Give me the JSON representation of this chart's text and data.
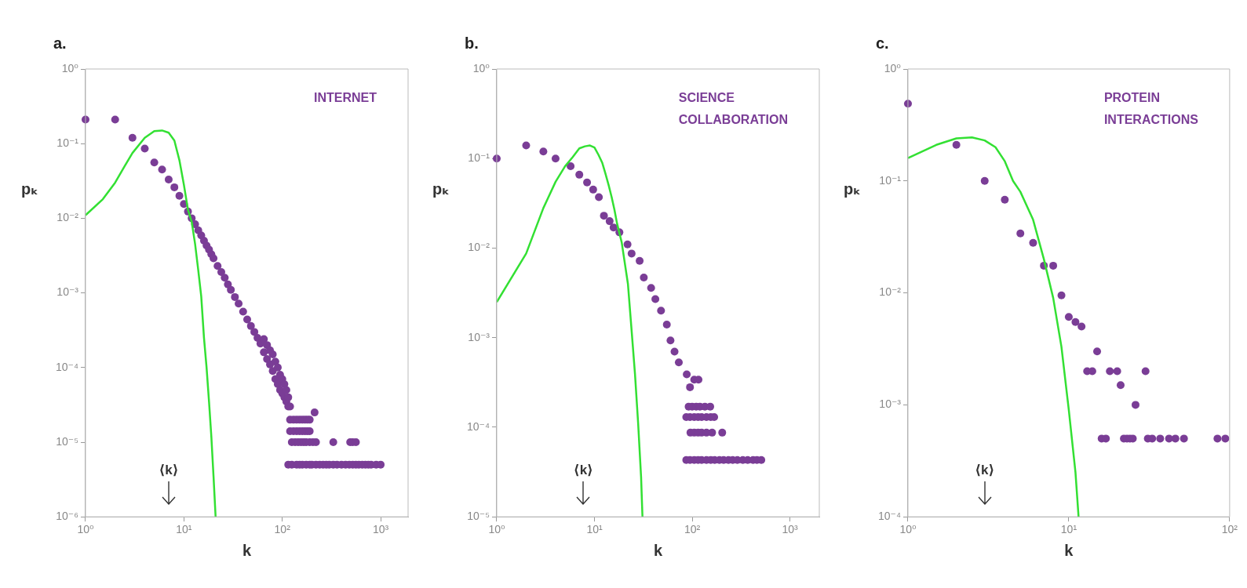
{
  "chart_data": [
    {
      "type": "scatter",
      "title": "a.",
      "xlabel": "k",
      "ylabel": "pₖ",
      "log": "xy",
      "xlim": [
        1,
        1900
      ],
      "ylim": [
        1e-06,
        1
      ],
      "xticks": [
        {
          "value": 1,
          "label": "10⁰"
        },
        {
          "value": 10,
          "label": "10¹"
        },
        {
          "value": 100,
          "label": "10²"
        },
        {
          "value": 1000,
          "label": "10³"
        }
      ],
      "yticks": [
        {
          "value": 1e-06,
          "label": "10⁻⁶"
        },
        {
          "value": 1e-05,
          "label": "10⁻⁵"
        },
        {
          "value": 0.0001,
          "label": "10⁻⁴"
        },
        {
          "value": 0.001,
          "label": "10⁻³"
        },
        {
          "value": 0.01,
          "label": "10⁻²"
        },
        {
          "value": 0.1,
          "label": "10⁻¹"
        },
        {
          "value": 1,
          "label": "10⁰"
        }
      ],
      "annotations": [
        "INTERNET"
      ],
      "ref_lines": [
        {
          "axis": "x",
          "value": 7,
          "label": "⟨k⟩"
        }
      ],
      "series": [
        {
          "marker": "circle",
          "color": "#7a3d96",
          "x": [
            1,
            2,
            3,
            4,
            5,
            6,
            7,
            8,
            9,
            10,
            11,
            12,
            13,
            14,
            15,
            16,
            17,
            18,
            19,
            20,
            22,
            24,
            26,
            28,
            30,
            33,
            36,
            40,
            44,
            48,
            52,
            56,
            60,
            65,
            65,
            70,
            70,
            75,
            75,
            80,
            80,
            85,
            85,
            90,
            90,
            95,
            95,
            100,
            100,
            105,
            105,
            110,
            110,
            115,
            115,
            120,
            120,
            130,
            140,
            150,
            160,
            170,
            180,
            190,
            120,
            130,
            140,
            150,
            160,
            170,
            180,
            190,
            125,
            135,
            145,
            155,
            165,
            175,
            190,
            205,
            220,
            330,
            490,
            520,
            560,
            115,
            125,
            140,
            150,
            160,
            175,
            190,
            200,
            220,
            240,
            260,
            280,
            300,
            330,
            360,
            400,
            440,
            480,
            520,
            560,
            600,
            650,
            700,
            750,
            800,
            900,
            1000,
            213
          ],
          "values": [
            0.21,
            0.21,
            0.12,
            0.086,
            0.056,
            0.045,
            0.033,
            0.026,
            0.02,
            0.0155,
            0.0123,
            0.01,
            0.0083,
            0.0069,
            0.0059,
            0.005,
            0.0043,
            0.0038,
            0.0033,
            0.0029,
            0.0023,
            0.0019,
            0.0016,
            0.0013,
            0.0011,
            0.00088,
            0.00072,
            0.00056,
            0.00044,
            0.00036,
            0.0003,
            0.00025,
            0.00021,
            0.00024,
            0.00016,
            0.0002,
            0.00013,
            0.00017,
            0.00011,
            0.00015,
            9e-05,
            0.00012,
            7e-05,
            0.0001,
            6e-05,
            8e-05,
            5e-05,
            7e-05,
            4.5e-05,
            6e-05,
            4e-05,
            5e-05,
            3.5e-05,
            4e-05,
            3e-05,
            3e-05,
            2e-05,
            2e-05,
            2e-05,
            2e-05,
            2e-05,
            2e-05,
            2e-05,
            2e-05,
            1.4e-05,
            1.4e-05,
            1.4e-05,
            1.4e-05,
            1.4e-05,
            1.4e-05,
            1.4e-05,
            1.4e-05,
            1e-05,
            1e-05,
            1e-05,
            1e-05,
            1e-05,
            1e-05,
            1e-05,
            1e-05,
            1e-05,
            1e-05,
            1e-05,
            1e-05,
            1e-05,
            5e-06,
            5e-06,
            5e-06,
            5e-06,
            5e-06,
            5e-06,
            5e-06,
            5e-06,
            5e-06,
            5e-06,
            5e-06,
            5e-06,
            5e-06,
            5e-06,
            5e-06,
            5e-06,
            5e-06,
            5e-06,
            5e-06,
            5e-06,
            5e-06,
            5e-06,
            5e-06,
            5e-06,
            5e-06,
            5e-06,
            5e-06,
            2.5e-05
          ]
        },
        {
          "type": "line",
          "marker": "none",
          "color": "#33e033",
          "x": [
            1,
            1.5,
            2,
            2.5,
            3,
            4,
            5,
            6,
            7,
            8,
            9,
            10,
            11,
            12,
            13,
            14,
            15,
            16,
            17,
            18,
            19,
            20,
            21
          ],
          "values": [
            0.011,
            0.018,
            0.03,
            0.05,
            0.075,
            0.12,
            0.147,
            0.15,
            0.14,
            0.11,
            0.06,
            0.028,
            0.013,
            0.009,
            0.0045,
            0.002,
            0.0009,
            0.00025,
            0.0001,
            3.5e-05,
            1.2e-05,
            3.5e-06,
            1e-06
          ]
        }
      ]
    },
    {
      "type": "scatter",
      "title": "b.",
      "xlabel": "k",
      "ylabel": "pₖ",
      "log": "xy",
      "xlim": [
        1,
        2000
      ],
      "ylim": [
        1e-05,
        1
      ],
      "xticks": [
        {
          "value": 1,
          "label": "10⁰"
        },
        {
          "value": 10,
          "label": "10¹"
        },
        {
          "value": 100,
          "label": "10²"
        },
        {
          "value": 1000,
          "label": "10³"
        }
      ],
      "yticks": [
        {
          "value": 1e-05,
          "label": "10⁻⁵"
        },
        {
          "value": 0.0001,
          "label": "10⁻⁴"
        },
        {
          "value": 0.001,
          "label": "10⁻³"
        },
        {
          "value": 0.01,
          "label": "10⁻²"
        },
        {
          "value": 0.1,
          "label": "10⁻¹"
        },
        {
          "value": 1,
          "label": "10⁰"
        }
      ],
      "annotations": [
        "SCIENCE COLLABORATION"
      ],
      "ref_lines": [
        {
          "axis": "x",
          "value": 7.7,
          "label": "⟨k⟩"
        }
      ],
      "series": [
        {
          "marker": "circle",
          "color": "#7a3d96",
          "x": [
            1,
            2,
            3,
            4,
            5.7,
            7,
            8.4,
            9.7,
            11.1,
            12.5,
            14.3,
            15.7,
            18,
            21.8,
            24,
            29,
            32,
            38,
            42,
            48,
            55,
            60,
            66,
            73,
            88,
            105,
            116,
            95,
            92,
            100,
            110,
            120,
            135,
            153,
            87,
            95,
            105,
            115,
            125,
            140,
            155,
            168,
            96,
            105,
            115,
            125,
            140,
            160,
            203,
            87,
            95,
            105,
            115,
            125,
            140,
            155,
            170,
            190,
            210,
            235,
            260,
            290,
            330,
            370,
            420,
            460,
            510
          ],
          "values": [
            0.1,
            0.14,
            0.12,
            0.1,
            0.082,
            0.066,
            0.054,
            0.045,
            0.037,
            0.023,
            0.02,
            0.017,
            0.015,
            0.011,
            0.0087,
            0.0072,
            0.0047,
            0.0036,
            0.0027,
            0.002,
            0.0014,
            0.00093,
            0.0007,
            0.00053,
            0.00039,
            0.00034,
            0.00034,
            0.00028,
            0.00017,
            0.00017,
            0.00017,
            0.00017,
            0.00017,
            0.00017,
            0.00013,
            0.00013,
            0.00013,
            0.00013,
            0.00013,
            0.00013,
            0.00013,
            0.00013,
            8.7e-05,
            8.7e-05,
            8.7e-05,
            8.7e-05,
            8.7e-05,
            8.7e-05,
            8.7e-05,
            4.3e-05,
            4.3e-05,
            4.3e-05,
            4.3e-05,
            4.3e-05,
            4.3e-05,
            4.3e-05,
            4.3e-05,
            4.3e-05,
            4.3e-05,
            4.3e-05,
            4.3e-05,
            4.3e-05,
            4.3e-05,
            4.3e-05,
            4.3e-05,
            4.3e-05,
            4.3e-05
          ]
        },
        {
          "type": "line",
          "marker": "none",
          "color": "#33e033",
          "x": [
            1,
            2,
            3,
            4,
            5,
            6,
            7,
            8,
            9,
            10,
            11,
            12,
            13,
            14,
            15,
            16,
            17,
            19,
            22,
            24,
            26,
            28,
            30,
            31
          ],
          "values": [
            0.0025,
            0.0087,
            0.028,
            0.055,
            0.082,
            0.104,
            0.13,
            0.137,
            0.14,
            0.133,
            0.11,
            0.09,
            0.067,
            0.05,
            0.037,
            0.027,
            0.019,
            0.0116,
            0.004,
            0.0012,
            0.00039,
            0.00011,
            2.8e-05,
            1e-05
          ]
        }
      ]
    },
    {
      "type": "scatter",
      "title": "c.",
      "xlabel": "k",
      "ylabel": "pₖ",
      "log": "xy",
      "xlim": [
        1,
        100
      ],
      "ylim": [
        0.0001,
        1
      ],
      "xticks": [
        {
          "value": 1,
          "label": "10⁰"
        },
        {
          "value": 10,
          "label": "10¹"
        },
        {
          "value": 100,
          "label": "10²"
        }
      ],
      "yticks": [
        {
          "value": 0.0001,
          "label": "10⁻⁴"
        },
        {
          "value": 0.001,
          "label": "10⁻³"
        },
        {
          "value": 0.01,
          "label": "10⁻²"
        },
        {
          "value": 0.1,
          "label": "10⁻¹"
        },
        {
          "value": 1,
          "label": "10⁰"
        }
      ],
      "annotations": [
        "PROTEIN INTERACTIONS"
      ],
      "ref_lines": [
        {
          "axis": "x",
          "value": 3,
          "label": "⟨k⟩"
        }
      ],
      "series": [
        {
          "marker": "circle",
          "color": "#7a3d96",
          "x": [
            1,
            2,
            3,
            4,
            5,
            6,
            7,
            8,
            9,
            10,
            11,
            12,
            13,
            14,
            15,
            18,
            20,
            21,
            26,
            30,
            16,
            17,
            22,
            23,
            24,
            25,
            31,
            33,
            37,
            42,
            46,
            52,
            84,
            94
          ],
          "values": [
            0.49,
            0.21,
            0.1,
            0.068,
            0.034,
            0.028,
            0.0175,
            0.0175,
            0.0095,
            0.0061,
            0.0055,
            0.005,
            0.002,
            0.002,
            0.003,
            0.002,
            0.002,
            0.0015,
            0.001,
            0.002,
            0.0005,
            0.0005,
            0.0005,
            0.0005,
            0.0005,
            0.0005,
            0.0005,
            0.0005,
            0.0005,
            0.0005,
            0.0005,
            0.0005,
            0.0005,
            0.0005
          ]
        },
        {
          "type": "line",
          "marker": "none",
          "color": "#33e033",
          "x": [
            1,
            1.5,
            2,
            2.5,
            3,
            3.5,
            4,
            4.5,
            5,
            6,
            7,
            8,
            9,
            10,
            11,
            11.5
          ],
          "values": [
            0.16,
            0.21,
            0.24,
            0.245,
            0.23,
            0.2,
            0.15,
            0.1,
            0.08,
            0.045,
            0.02,
            0.009,
            0.0033,
            0.0009,
            0.00025,
            0.0001
          ]
        }
      ]
    }
  ]
}
